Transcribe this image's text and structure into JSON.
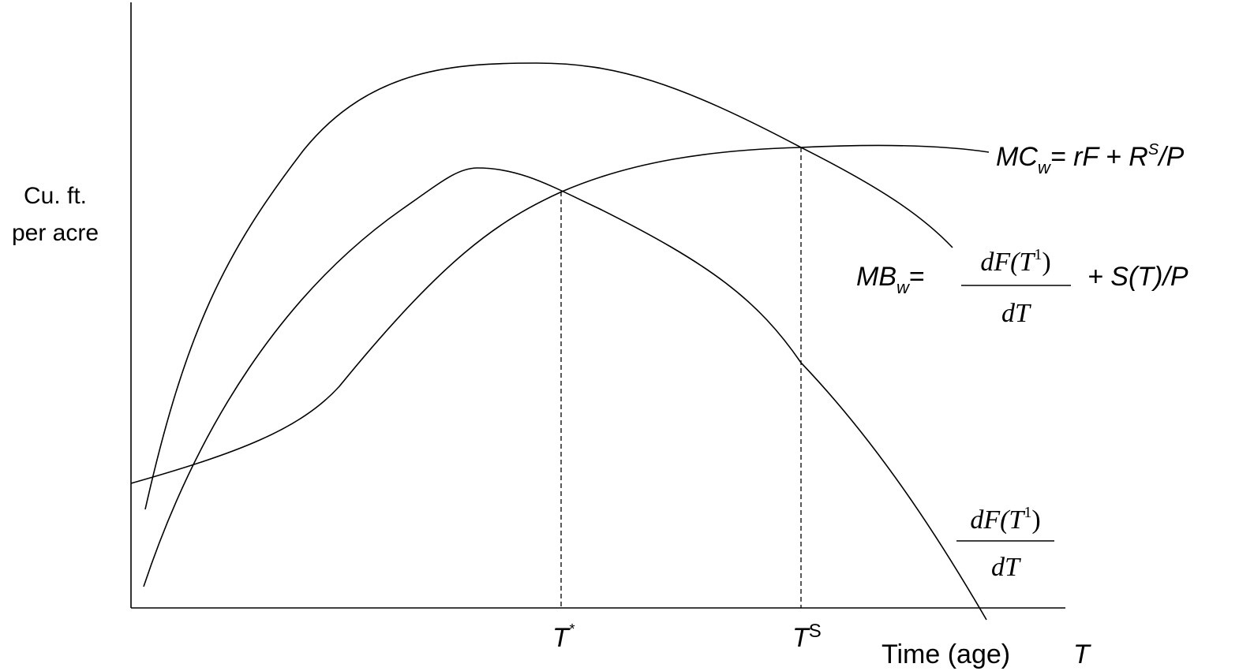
{
  "y_axis_label": {
    "line1": "Cu. ft.",
    "line2": "per acre"
  },
  "x_axis_label": {
    "text": "Time (age)",
    "symbol": "T"
  },
  "ticks": {
    "t_star": {
      "base": "T",
      "sup": "*"
    },
    "t_s": {
      "base": "T",
      "sup": "S"
    }
  },
  "mc_label": {
    "name": "MC",
    "sub": "w",
    "rest": "= rF + R",
    "sup": "S",
    "tail": "/P"
  },
  "mb_label": {
    "name": "MB",
    "sub": "w",
    "eq": "=",
    "frac_num": "dF(T",
    "frac_num_sup": "1",
    "frac_num_close": ")",
    "frac_den": "dT",
    "tail": "+ S(T)/P"
  },
  "df_label": {
    "frac_num": "dF(T",
    "frac_num_sup": "1",
    "frac_num_close": ")",
    "frac_den": "dT"
  }
}
